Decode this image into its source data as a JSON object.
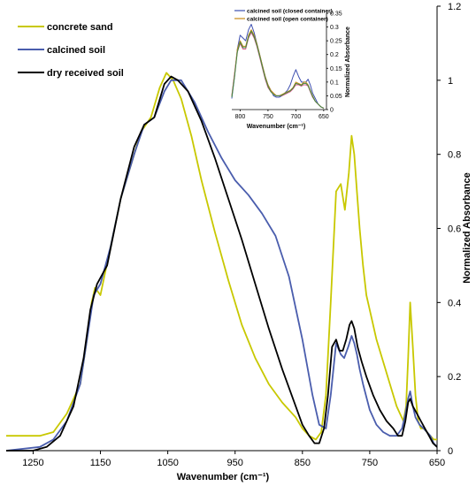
{
  "chart_data": [
    {
      "type": "line",
      "title": "",
      "xlabel": "Wavenumber (cm⁻¹)",
      "ylabel": "Normalized Absorbance",
      "xlim": [
        1290,
        650
      ],
      "x_reversed": true,
      "ylim": [
        0,
        1.2
      ],
      "y_axis_side": "right",
      "xticks": [
        "1250",
        "1150",
        "1050",
        "950",
        "850",
        "750",
        "650"
      ],
      "yticks": [
        "0",
        "0.2",
        "0.4",
        "0.6",
        "0.8",
        "1",
        "1.2"
      ],
      "legend_position": "top-left",
      "series": [
        {
          "name": "concrete sand",
          "color": "#c8c800",
          "x": [
            1290,
            1260,
            1240,
            1220,
            1200,
            1180,
            1170,
            1163,
            1158,
            1150,
            1135,
            1120,
            1100,
            1090,
            1075,
            1062,
            1052,
            1042,
            1030,
            1015,
            1000,
            980,
            960,
            940,
            920,
            900,
            880,
            860,
            850,
            840,
            830,
            822,
            815,
            808,
            800,
            793,
            787,
            781,
            777,
            773,
            769,
            765,
            760,
            755,
            750,
            740,
            730,
            720,
            710,
            705,
            700,
            696,
            693,
            690,
            686,
            682,
            678,
            674,
            670,
            665,
            660,
            655,
            650
          ],
          "y": [
            0.04,
            0.04,
            0.04,
            0.05,
            0.1,
            0.18,
            0.3,
            0.4,
            0.44,
            0.42,
            0.55,
            0.68,
            0.8,
            0.86,
            0.9,
            0.98,
            1.02,
            1.0,
            0.95,
            0.85,
            0.73,
            0.59,
            0.46,
            0.34,
            0.25,
            0.18,
            0.13,
            0.09,
            0.06,
            0.04,
            0.03,
            0.05,
            0.15,
            0.4,
            0.7,
            0.72,
            0.65,
            0.75,
            0.85,
            0.8,
            0.7,
            0.6,
            0.5,
            0.42,
            0.38,
            0.3,
            0.24,
            0.18,
            0.12,
            0.1,
            0.08,
            0.12,
            0.25,
            0.4,
            0.28,
            0.15,
            0.08,
            0.06,
            0.06,
            0.05,
            0.04,
            0.03,
            0.03
          ]
        },
        {
          "name": "calcined soil",
          "color": "#4a5dad",
          "x": [
            1290,
            1240,
            1220,
            1200,
            1180,
            1170,
            1160,
            1150,
            1135,
            1120,
            1100,
            1085,
            1070,
            1055,
            1045,
            1030,
            1010,
            990,
            970,
            950,
            930,
            910,
            890,
            870,
            850,
            835,
            825,
            815,
            808,
            800,
            793,
            788,
            782,
            777,
            773,
            769,
            765,
            760,
            750,
            740,
            730,
            720,
            710,
            702,
            697,
            693,
            690,
            686,
            682,
            676,
            670,
            665,
            660,
            655,
            650
          ],
          "y": [
            0.0,
            0.01,
            0.03,
            0.08,
            0.18,
            0.3,
            0.42,
            0.45,
            0.55,
            0.68,
            0.8,
            0.88,
            0.9,
            0.97,
            1.0,
            1.0,
            0.94,
            0.86,
            0.79,
            0.73,
            0.69,
            0.64,
            0.58,
            0.47,
            0.3,
            0.15,
            0.07,
            0.06,
            0.15,
            0.29,
            0.26,
            0.25,
            0.28,
            0.31,
            0.29,
            0.26,
            0.22,
            0.18,
            0.11,
            0.07,
            0.05,
            0.04,
            0.04,
            0.06,
            0.1,
            0.14,
            0.16,
            0.12,
            0.09,
            0.07,
            0.06,
            0.05,
            0.04,
            0.02,
            0.01
          ]
        },
        {
          "name": "dry received soil",
          "color": "#000000",
          "x": [
            1290,
            1250,
            1230,
            1210,
            1190,
            1175,
            1165,
            1155,
            1140,
            1120,
            1100,
            1085,
            1070,
            1055,
            1045,
            1035,
            1020,
            1000,
            980,
            960,
            940,
            920,
            900,
            880,
            860,
            850,
            840,
            832,
            825,
            818,
            812,
            806,
            800,
            795,
            790,
            785,
            780,
            777,
            773,
            768,
            762,
            755,
            745,
            735,
            725,
            715,
            708,
            702,
            697,
            693,
            690,
            686,
            680,
            674,
            668,
            662,
            656,
            650
          ],
          "y": [
            0.0,
            0.0,
            0.01,
            0.04,
            0.12,
            0.25,
            0.38,
            0.45,
            0.5,
            0.68,
            0.82,
            0.88,
            0.9,
            0.99,
            1.01,
            1.0,
            0.97,
            0.89,
            0.79,
            0.68,
            0.57,
            0.45,
            0.33,
            0.22,
            0.12,
            0.07,
            0.04,
            0.02,
            0.02,
            0.06,
            0.15,
            0.28,
            0.3,
            0.27,
            0.27,
            0.3,
            0.34,
            0.35,
            0.33,
            0.28,
            0.24,
            0.2,
            0.15,
            0.11,
            0.08,
            0.06,
            0.04,
            0.04,
            0.08,
            0.13,
            0.14,
            0.12,
            0.1,
            0.08,
            0.06,
            0.04,
            0.02,
            0.01
          ]
        }
      ]
    },
    {
      "type": "line",
      "title": "",
      "xlabel": "Wavenumber (cm⁻¹)",
      "ylabel": "Normalized Absorbance",
      "xlim": [
        815,
        645
      ],
      "x_reversed": true,
      "ylim": [
        0,
        0.35
      ],
      "y_axis_side": "right",
      "xticks": [
        "800",
        "750",
        "700",
        "650"
      ],
      "yticks": [
        "0",
        "0.05",
        "0.1",
        "0.15",
        "0.2",
        "0.25",
        "0.3",
        "0.35"
      ],
      "legend_position": "top-left",
      "series": [
        {
          "name": "calcined soil (closed container)",
          "color": "#3d4fb0",
          "x": [
            815,
            810,
            805,
            800,
            795,
            790,
            785,
            780,
            775,
            770,
            765,
            760,
            755,
            750,
            745,
            740,
            735,
            730,
            725,
            720,
            715,
            710,
            705,
            700,
            695,
            690,
            686,
            682,
            678,
            674,
            670,
            665,
            660,
            655,
            650
          ],
          "y": [
            0.04,
            0.12,
            0.22,
            0.27,
            0.26,
            0.25,
            0.29,
            0.31,
            0.28,
            0.24,
            0.2,
            0.16,
            0.12,
            0.09,
            0.07,
            0.05,
            0.045,
            0.045,
            0.05,
            0.06,
            0.07,
            0.09,
            0.12,
            0.145,
            0.12,
            0.1,
            0.1,
            0.1,
            0.11,
            0.09,
            0.06,
            0.04,
            0.02,
            0.01,
            0.005
          ]
        },
        {
          "name": "calcined soil (open container)",
          "color": "#c88a18",
          "x": [
            815,
            810,
            805,
            800,
            795,
            790,
            785,
            780,
            775,
            770,
            765,
            760,
            755,
            750,
            745,
            740,
            735,
            730,
            725,
            720,
            715,
            710,
            705,
            700,
            695,
            690,
            686,
            682,
            678,
            674,
            670,
            665,
            660,
            655,
            650
          ],
          "y": [
            0.05,
            0.13,
            0.22,
            0.25,
            0.23,
            0.23,
            0.27,
            0.29,
            0.27,
            0.24,
            0.2,
            0.16,
            0.12,
            0.09,
            0.07,
            0.06,
            0.05,
            0.05,
            0.055,
            0.06,
            0.065,
            0.07,
            0.08,
            0.1,
            0.095,
            0.09,
            0.1,
            0.1,
            0.09,
            0.07,
            0.05,
            0.03,
            0.02,
            0.01,
            0.005
          ]
        },
        {
          "name": "",
          "color": "#d65a8a",
          "x": [
            815,
            810,
            805,
            800,
            795,
            790,
            785,
            780,
            775,
            770,
            765,
            760,
            755,
            750,
            745,
            740,
            735,
            730,
            725,
            720,
            715,
            710,
            705,
            700,
            695,
            690,
            686,
            682,
            678,
            674,
            670,
            665,
            660,
            655,
            650
          ],
          "y": [
            0.05,
            0.13,
            0.21,
            0.24,
            0.22,
            0.22,
            0.26,
            0.28,
            0.26,
            0.23,
            0.19,
            0.15,
            0.11,
            0.08,
            0.065,
            0.055,
            0.05,
            0.05,
            0.05,
            0.055,
            0.06,
            0.065,
            0.075,
            0.09,
            0.09,
            0.085,
            0.09,
            0.09,
            0.085,
            0.065,
            0.045,
            0.03,
            0.02,
            0.01,
            0.005
          ]
        },
        {
          "name": "",
          "color": "#3f8a3f",
          "x": [
            815,
            810,
            805,
            800,
            795,
            790,
            785,
            780,
            775,
            770,
            765,
            760,
            755,
            750,
            745,
            740,
            735,
            730,
            725,
            720,
            715,
            710,
            705,
            700,
            695,
            690,
            686,
            682,
            678,
            674,
            670,
            665,
            660,
            655,
            650
          ],
          "y": [
            0.045,
            0.12,
            0.21,
            0.245,
            0.225,
            0.225,
            0.265,
            0.285,
            0.265,
            0.235,
            0.195,
            0.155,
            0.115,
            0.085,
            0.065,
            0.055,
            0.05,
            0.05,
            0.052,
            0.058,
            0.063,
            0.068,
            0.078,
            0.095,
            0.092,
            0.088,
            0.095,
            0.095,
            0.088,
            0.068,
            0.048,
            0.03,
            0.02,
            0.01,
            0.005
          ]
        }
      ]
    }
  ]
}
